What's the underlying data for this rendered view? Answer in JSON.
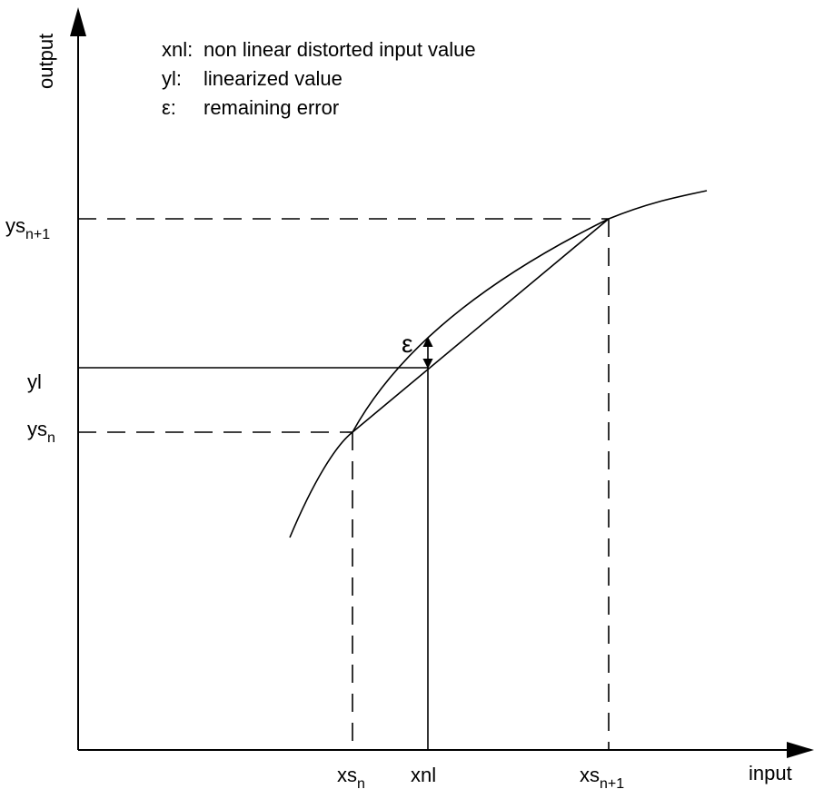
{
  "axes": {
    "x_title": "input",
    "y_title": "output"
  },
  "legend": [
    {
      "key": "xnl:",
      "description": "non linear distorted input value"
    },
    {
      "key": "yl:",
      "description": "linearized value"
    },
    {
      "key": "ε:",
      "description": "remaining error"
    }
  ],
  "y_ticks": {
    "ys_n1": {
      "base": "ys",
      "sub": "n+1"
    },
    "yl": {
      "base": "yl"
    },
    "ys_n": {
      "base": "ys",
      "sub": "n"
    }
  },
  "x_ticks": {
    "xs_n": {
      "base": "xs",
      "sub": "n"
    },
    "xnl": {
      "base": "xnl"
    },
    "xs_n1": {
      "base": "xs",
      "sub": "n+1"
    }
  },
  "error_label": "ε"
}
